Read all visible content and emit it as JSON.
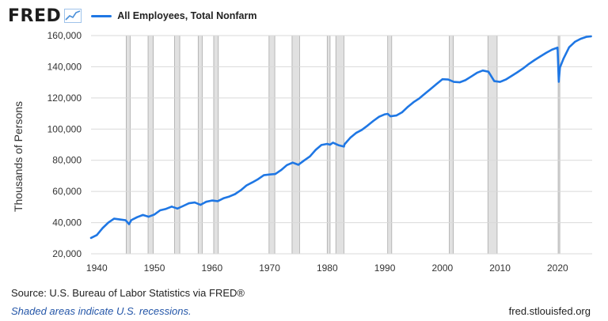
{
  "header": {
    "logo_text": "FRED",
    "logo_icon": "trend-line-icon",
    "legend_label": "All Employees, Total Nonfarm"
  },
  "colors": {
    "series": "#1f77e4",
    "recession": "#e1e1e1",
    "recession_edge": "#a9a9a9",
    "grid": "#d9d9d9",
    "logo_icon": "#4a8fd9"
  },
  "footer": {
    "source_text": "Source: U.S. Bureau of Labor Statistics via FRED®",
    "recession_note": "Shaded areas indicate U.S. recessions.",
    "site": "fred.stlouisfed.org"
  },
  "chart_data": {
    "type": "line",
    "title": "",
    "xlabel": "",
    "ylabel": "Thousands of Persons",
    "xlim": [
      1939,
      2026
    ],
    "ylim": [
      20000,
      160000
    ],
    "x_ticks": [
      "1940",
      "1950",
      "1960",
      "1970",
      "1980",
      "1990",
      "2000",
      "2010",
      "2020"
    ],
    "y_ticks": [
      "20,000",
      "40,000",
      "60,000",
      "80,000",
      "100,000",
      "120,000",
      "140,000",
      "160,000"
    ],
    "grid": true,
    "legend": "top-left",
    "recessions": [
      [
        1945.1,
        1945.8
      ],
      [
        1948.9,
        1949.8
      ],
      [
        1953.5,
        1954.4
      ],
      [
        1957.6,
        1958.3
      ],
      [
        1960.3,
        1961.1
      ],
      [
        1969.9,
        1970.9
      ],
      [
        1973.9,
        1975.2
      ],
      [
        1980.0,
        1980.5
      ],
      [
        1981.5,
        1982.9
      ],
      [
        1990.5,
        1991.2
      ],
      [
        2001.2,
        2001.9
      ],
      [
        2007.9,
        2009.5
      ],
      [
        2020.1,
        2020.3
      ]
    ],
    "series": [
      {
        "name": "All Employees, Total Nonfarm",
        "x": [
          1939,
          1940,
          1941,
          1942,
          1943,
          1944,
          1945,
          1945.6,
          1946,
          1947,
          1948,
          1949,
          1950,
          1951,
          1952,
          1953,
          1954,
          1955,
          1956,
          1957,
          1958,
          1959,
          1960,
          1961,
          1962,
          1963,
          1964,
          1965,
          1966,
          1967,
          1968,
          1969,
          1970,
          1971,
          1972,
          1973,
          1974,
          1975,
          1976,
          1977,
          1978,
          1979,
          1980,
          1980.5,
          1981,
          1982,
          1982.9,
          1983,
          1984,
          1985,
          1986,
          1987,
          1988,
          1989,
          1990,
          1990.5,
          1991,
          1992,
          1993,
          1994,
          1995,
          1996,
          1997,
          1998,
          1999,
          2000,
          2001,
          2002,
          2003,
          2004,
          2005,
          2006,
          2007,
          2008,
          2009,
          2010,
          2011,
          2012,
          2013,
          2014,
          2015,
          2016,
          2017,
          2018,
          2019,
          2020.0,
          2020.2,
          2020.4,
          2021,
          2022,
          2023,
          2024,
          2025,
          2025.8
        ],
        "values": [
          30200,
          32000,
          36500,
          40000,
          42500,
          42000,
          41500,
          39000,
          41600,
          43500,
          44900,
          43800,
          45200,
          47900,
          48800,
          50300,
          49000,
          50700,
          52400,
          52900,
          51400,
          53400,
          54200,
          53800,
          55600,
          56700,
          58300,
          60800,
          63900,
          65800,
          67900,
          70400,
          70900,
          71200,
          73700,
          76900,
          78500,
          77100,
          79900,
          82500,
          86700,
          89800,
          90500,
          90000,
          91300,
          89600,
          88800,
          90200,
          94400,
          97500,
          99500,
          102200,
          105200,
          107900,
          109500,
          109800,
          108200,
          108700,
          110800,
          114300,
          117300,
          119700,
          122800,
          125900,
          129000,
          132000,
          131800,
          130300,
          130000,
          131400,
          133700,
          136100,
          137600,
          136800,
          130800,
          130300,
          131800,
          134100,
          136400,
          138900,
          141800,
          144300,
          146600,
          148900,
          150900,
          152300,
          130400,
          139500,
          145000,
          152500,
          156000,
          157900,
          159200,
          159500
        ]
      }
    ]
  }
}
